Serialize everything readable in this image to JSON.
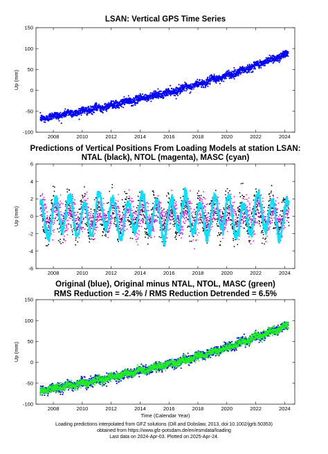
{
  "colors": {
    "gps": "#0000ff",
    "ntal": "#000000",
    "ntol": "#ff00ff",
    "masc": "#00e5ff",
    "corrected": "#22ee22"
  },
  "chart_data": [
    {
      "type": "scatter",
      "title": "LSAN: Vertical GPS Time Series",
      "xlabel": "",
      "ylabel": "Up (mm)",
      "xlim": [
        2006.8,
        2024.7
      ],
      "ylim": [
        -100,
        150
      ],
      "xticks": [
        "2008",
        "2010",
        "2012",
        "2014",
        "2016",
        "2018",
        "2020",
        "2022",
        "2024"
      ],
      "yticks": [
        "-100",
        "-50",
        "0",
        "50",
        "100",
        "150"
      ],
      "grid": false,
      "series": [
        {
          "color": "#0000ff",
          "x": [
            2007.1,
            2008.0,
            2009.0,
            2010.0,
            2011.0,
            2012.0,
            2013.0,
            2014.0,
            2015.0,
            2016.0,
            2017.0,
            2018.0,
            2019.0,
            2020.0,
            2021.0,
            2022.0,
            2023.0,
            2024.25
          ],
          "y": [
            -68,
            -62,
            -55,
            -50,
            -43,
            -36,
            -28,
            -20,
            -12,
            -5,
            5,
            14,
            25,
            35,
            47,
            60,
            73,
            88
          ]
        }
      ]
    },
    {
      "type": "scatter",
      "title": "Predictions of Vertical Positions From Loading Models at station LSAN:",
      "subtitle": "NTAL (black), NTOL (magenta), MASC (cyan)",
      "xlabel": "",
      "ylabel": "Up (mm)",
      "xlim": [
        2006.8,
        2024.7
      ],
      "ylim": [
        -6,
        6
      ],
      "xticks": [
        "2008",
        "2010",
        "2012",
        "2014",
        "2016",
        "2018",
        "2020",
        "2022",
        "2024"
      ],
      "yticks": [
        "-6",
        "-4",
        "-2",
        "0",
        "2",
        "4",
        "6"
      ],
      "grid": false,
      "series": [
        {
          "color": "#000000",
          "amplitude": 1.6,
          "period_years": 1.0,
          "x_range": [
            2007.1,
            2024.3
          ]
        },
        {
          "color": "#ff00ff",
          "amplitude": 1.2,
          "period_years": 1.0,
          "x_range": [
            2007.1,
            2024.3
          ]
        },
        {
          "color": "#00e5ff",
          "amplitude": 2.0,
          "period_years": 1.0,
          "x_range": [
            2007.1,
            2024.3
          ]
        }
      ]
    },
    {
      "type": "scatter",
      "title": "Original (blue), Original minus NTAL, NTOL, MASC (green)",
      "subtitle": "RMS Reduction = -2.4% / RMS Reduction Detrended = 6.5%",
      "xlabel": "Time (Calendar Year)",
      "ylabel": "Up (mm)",
      "xlim": [
        2006.8,
        2024.7
      ],
      "ylim": [
        -100,
        150
      ],
      "xticks": [
        "2008",
        "2010",
        "2012",
        "2014",
        "2016",
        "2018",
        "2020",
        "2022",
        "2024"
      ],
      "yticks": [
        "-100",
        "-50",
        "0",
        "50",
        "100",
        "150"
      ],
      "grid": false,
      "series": [
        {
          "color": "#0000ff",
          "x": [
            2007.1,
            2008.0,
            2010.0,
            2012.0,
            2014.0,
            2016.0,
            2018.0,
            2020.0,
            2022.0,
            2024.25
          ],
          "y": [
            -68,
            -62,
            -50,
            -36,
            -20,
            -5,
            14,
            35,
            60,
            88
          ]
        },
        {
          "color": "#22ee22",
          "x": [
            2007.1,
            2008.0,
            2010.0,
            2012.0,
            2014.0,
            2016.0,
            2018.0,
            2020.0,
            2022.0,
            2024.25
          ],
          "y": [
            -68,
            -62,
            -50,
            -36,
            -20,
            -5,
            14,
            35,
            60,
            88
          ]
        }
      ]
    }
  ],
  "footer": {
    "line1": "Loading predictions interpolated from GFZ solutions (Dill and Dobslaw, 2013, doi:10.1002/jgrb.50353)",
    "line2": "obtained from https://www.gfz-potsdam.de/en/esmdata/loading",
    "line3": "Last data on 2024-Apr-03. Plotted on 2025-Apr-24."
  }
}
